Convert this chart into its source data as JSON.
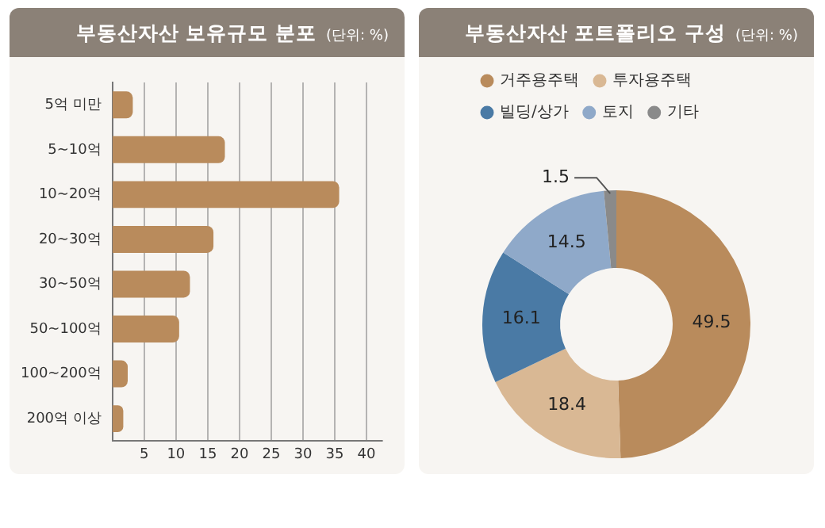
{
  "chart_data": [
    {
      "type": "bar",
      "title": "부동산자산 보유규모 분포",
      "subtitle": "(단위: %)",
      "orientation": "horizontal",
      "categories": [
        "5억 미만",
        "5~10억",
        "10~20억",
        "20~30억",
        "30~50억",
        "50~100억",
        "100~200억",
        "200억 이상"
      ],
      "values": [
        3.2,
        17.7,
        35.7,
        15.9,
        12.2,
        10.5,
        2.4,
        1.7
      ],
      "color": "#b98b5c",
      "xlim": [
        0,
        42.5
      ],
      "xticks": [
        5,
        10,
        15,
        20,
        25,
        30,
        35,
        40
      ],
      "grid": "x",
      "legend": false
    },
    {
      "type": "donut",
      "title": "부동산자산 포트폴리오 구성",
      "subtitle": "(단위: %)",
      "categories": [
        "거주용주택",
        "투자용주택",
        "빌딩/상가",
        "토지",
        "기타"
      ],
      "values": [
        49.5,
        18.4,
        16.1,
        14.5,
        1.5
      ],
      "colors": [
        "#b98b5c",
        "#d9b894",
        "#4a7aa5",
        "#8fa9c9",
        "#8a8a8a"
      ],
      "legend": "top",
      "data_labels": true
    }
  ]
}
